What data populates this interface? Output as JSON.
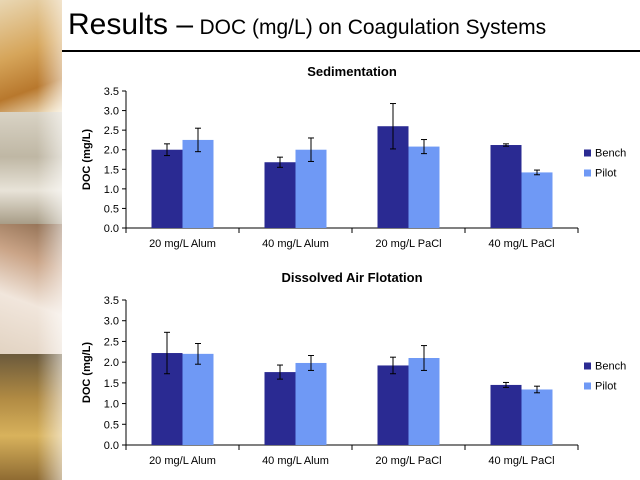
{
  "slide": {
    "title_main": "Results –",
    "title_sub": "DOC (mg/L) on Coagulation Systems"
  },
  "colors": {
    "bench": "#2a2a92",
    "pilot": "#6f99f5"
  },
  "chart_data": [
    {
      "type": "bar",
      "title": "Sedimentation",
      "ylabel": "DOC (mg/L)",
      "xlabel": "",
      "ylim": [
        0,
        3.5
      ],
      "yticks": [
        "0.0",
        "0.5",
        "1.0",
        "1.5",
        "2.0",
        "2.5",
        "3.0",
        "3.5"
      ],
      "grid": false,
      "legend": "right",
      "categories": [
        "20 mg/L Alum",
        "40 mg/L Alum",
        "20 mg/L PaCl",
        "40 mg/L PaCl"
      ],
      "series": [
        {
          "name": "Bench",
          "values": [
            2.0,
            1.68,
            2.6,
            2.12
          ],
          "errors": [
            0.15,
            0.13,
            0.58,
            0.03
          ]
        },
        {
          "name": "Pilot",
          "values": [
            2.25,
            2.0,
            2.08,
            1.42
          ],
          "errors": [
            0.3,
            0.3,
            0.18,
            0.06
          ]
        }
      ]
    },
    {
      "type": "bar",
      "title": "Dissolved Air Flotation",
      "ylabel": "DOC (mg/L)",
      "xlabel": "",
      "ylim": [
        0,
        3.5
      ],
      "yticks": [
        "0.0",
        "0.5",
        "1.0",
        "1.5",
        "2.0",
        "2.5",
        "3.0",
        "3.5"
      ],
      "grid": false,
      "legend": "right",
      "categories": [
        "20 mg/L Alum",
        "40 mg/L Alum",
        "20 mg/L PaCl",
        "40 mg/L PaCl"
      ],
      "series": [
        {
          "name": "Bench",
          "values": [
            2.22,
            1.76,
            1.92,
            1.45
          ],
          "errors": [
            0.5,
            0.17,
            0.2,
            0.06
          ]
        },
        {
          "name": "Pilot",
          "values": [
            2.2,
            1.98,
            2.1,
            1.34
          ],
          "errors": [
            0.25,
            0.18,
            0.3,
            0.08
          ]
        }
      ]
    }
  ]
}
